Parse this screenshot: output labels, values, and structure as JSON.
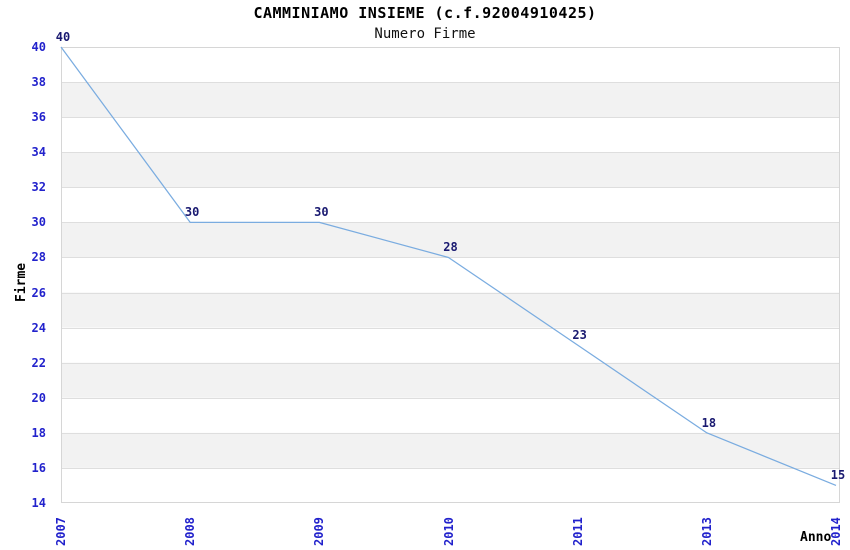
{
  "chart_data": {
    "type": "line",
    "title": "CAMMINIAMO INSIEME (c.f.92004910425)",
    "subtitle": "Numero Firme",
    "xlabel": "Anno",
    "ylabel": "Firme",
    "categories": [
      "2007",
      "2008",
      "2009",
      "2010",
      "2011",
      "2013",
      "2014"
    ],
    "series": [
      {
        "name": "Numero Firme",
        "values": [
          40,
          30,
          30,
          28,
          23,
          18,
          15
        ]
      }
    ],
    "data_labels": [
      "40",
      "30",
      "30",
      "28",
      "23",
      "18",
      "15"
    ],
    "ylim": [
      14,
      40
    ],
    "ytick_step": 2,
    "yticks": [
      14,
      16,
      18,
      20,
      22,
      24,
      26,
      28,
      30,
      32,
      34,
      36,
      38,
      40
    ],
    "grid": true,
    "legend_position": "none",
    "colors": {
      "line": "#7aace0",
      "tick_labels": "#2222cc",
      "data_labels": "#191970",
      "band_main": "#ffffff",
      "band_alt": "#f2f2f2",
      "plot_border": "#d6d6d6",
      "gridline": "#dedede",
      "text": "#000000",
      "background": "#ffffff"
    }
  }
}
